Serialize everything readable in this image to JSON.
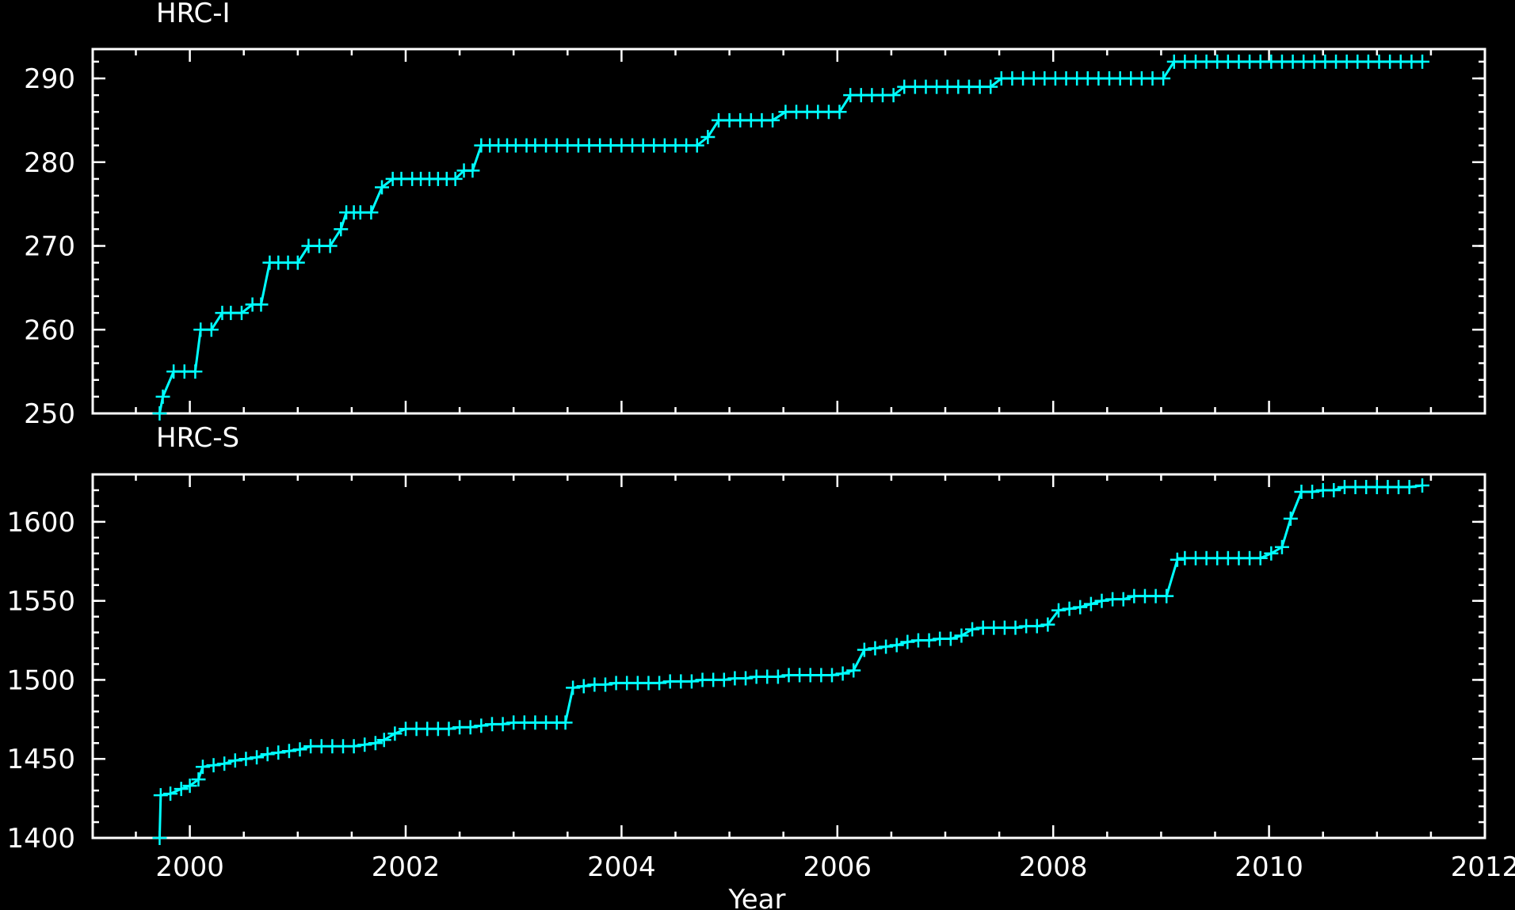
{
  "chart_data": [
    {
      "type": "line",
      "title": "HRC-I",
      "xlabel": "",
      "ylabel": "",
      "xlim": [
        1999.1,
        2012.0
      ],
      "ylim": [
        250,
        293.5
      ],
      "x_ticks": [
        2000,
        2002,
        2004,
        2006,
        2008,
        2010,
        2012
      ],
      "y_ticks": [
        250,
        260,
        270,
        280,
        290
      ],
      "y_tick_labels": [
        "250",
        "260",
        "270",
        "280",
        "290"
      ],
      "grid": false,
      "series": [
        {
          "color": "#00ffff",
          "marker": "plus",
          "x": [
            1999.72,
            1999.75,
            1999.85,
            1999.95,
            2000.05,
            2000.1,
            2000.2,
            2000.3,
            2000.38,
            2000.48,
            2000.58,
            2000.66,
            2000.74,
            2000.82,
            2000.91,
            2001.0,
            2001.1,
            2001.2,
            2001.3,
            2001.4,
            2001.45,
            2001.52,
            2001.58,
            2001.68,
            2001.78,
            2001.88,
            2001.96,
            2002.06,
            2002.14,
            2002.22,
            2002.3,
            2002.38,
            2002.46,
            2002.54,
            2002.62,
            2002.7,
            2002.78,
            2002.86,
            2002.94,
            2003.02,
            2003.12,
            2003.2,
            2003.3,
            2003.4,
            2003.5,
            2003.6,
            2003.7,
            2003.8,
            2003.9,
            2004.0,
            2004.1,
            2004.2,
            2004.3,
            2004.4,
            2004.5,
            2004.6,
            2004.7,
            2004.8,
            2004.9,
            2005.0,
            2005.1,
            2005.2,
            2005.3,
            2005.4,
            2005.52,
            2005.62,
            2005.72,
            2005.82,
            2005.92,
            2006.02,
            2006.12,
            2006.22,
            2006.32,
            2006.42,
            2006.52,
            2006.62,
            2006.72,
            2006.82,
            2006.92,
            2007.02,
            2007.12,
            2007.22,
            2007.32,
            2007.42,
            2007.52,
            2007.62,
            2007.72,
            2007.82,
            2007.92,
            2008.02,
            2008.12,
            2008.22,
            2008.32,
            2008.42,
            2008.52,
            2008.62,
            2008.72,
            2008.82,
            2008.92,
            2009.02,
            2009.12,
            2009.22,
            2009.32,
            2009.42,
            2009.52,
            2009.62,
            2009.72,
            2009.82,
            2009.92,
            2010.02,
            2010.12,
            2010.22,
            2010.32,
            2010.42,
            2010.52,
            2010.62,
            2010.72,
            2010.82,
            2010.92,
            2011.02,
            2011.12,
            2011.22,
            2011.32,
            2011.42
          ],
          "y": [
            250,
            252,
            255,
            255,
            255,
            260,
            260,
            262,
            262,
            262,
            263,
            263,
            268,
            268,
            268,
            268,
            270,
            270,
            270,
            272,
            274,
            274,
            274,
            274,
            277,
            278,
            278,
            278,
            278,
            278,
            278,
            278,
            278,
            279,
            279,
            282,
            282,
            282,
            282,
            282,
            282,
            282,
            282,
            282,
            282,
            282,
            282,
            282,
            282,
            282,
            282,
            282,
            282,
            282,
            282,
            282,
            282,
            283,
            285,
            285,
            285,
            285,
            285,
            285,
            286,
            286,
            286,
            286,
            286,
            286,
            288,
            288,
            288,
            288,
            288,
            289,
            289,
            289,
            289,
            289,
            289,
            289,
            289,
            289,
            290,
            290,
            290,
            290,
            290,
            290,
            290,
            290,
            290,
            290,
            290,
            290,
            290,
            290,
            290,
            290,
            292,
            292,
            292,
            292,
            292,
            292,
            292,
            292,
            292,
            292,
            292,
            292,
            292,
            292,
            292,
            292,
            292,
            292,
            292,
            292,
            292,
            292,
            292,
            292
          ]
        }
      ]
    },
    {
      "type": "line",
      "title": "HRC-S",
      "xlabel": "Year",
      "ylabel": "",
      "xlim": [
        1999.1,
        2012.0
      ],
      "ylim": [
        1400,
        1630
      ],
      "x_ticks": [
        2000,
        2002,
        2004,
        2006,
        2008,
        2010,
        2012
      ],
      "x_tick_labels": [
        "2000",
        "2002",
        "2004",
        "2006",
        "2008",
        "2010",
        "2012"
      ],
      "y_ticks": [
        1400,
        1450,
        1500,
        1550,
        1600
      ],
      "y_tick_labels": [
        "1400",
        "1450",
        "1500",
        "1550",
        "1600"
      ],
      "grid": false,
      "series": [
        {
          "color": "#00ffff",
          "marker": "plus",
          "x": [
            1999.72,
            1999.73,
            1999.82,
            1999.92,
            2000.0,
            2000.08,
            2000.12,
            2000.22,
            2000.32,
            2000.42,
            2000.52,
            2000.62,
            2000.72,
            2000.82,
            2000.92,
            2001.02,
            2001.12,
            2001.22,
            2001.32,
            2001.42,
            2001.52,
            2001.62,
            2001.72,
            2001.8,
            2001.9,
            2002.0,
            2002.1,
            2002.2,
            2002.3,
            2002.4,
            2002.5,
            2002.6,
            2002.7,
            2002.8,
            2002.9,
            2003.0,
            2003.1,
            2003.2,
            2003.3,
            2003.4,
            2003.48,
            2003.55,
            2003.65,
            2003.75,
            2003.85,
            2003.95,
            2004.05,
            2004.15,
            2004.25,
            2004.35,
            2004.45,
            2004.55,
            2004.65,
            2004.75,
            2004.85,
            2004.95,
            2005.05,
            2005.15,
            2005.25,
            2005.35,
            2005.45,
            2005.55,
            2005.65,
            2005.75,
            2005.85,
            2005.95,
            2006.05,
            2006.15,
            2006.25,
            2006.35,
            2006.45,
            2006.55,
            2006.65,
            2006.75,
            2006.85,
            2006.95,
            2007.05,
            2007.15,
            2007.25,
            2007.35,
            2007.45,
            2007.55,
            2007.65,
            2007.75,
            2007.85,
            2007.95,
            2008.05,
            2008.15,
            2008.25,
            2008.35,
            2008.45,
            2008.55,
            2008.65,
            2008.75,
            2008.85,
            2008.95,
            2009.05,
            2009.15,
            2009.22,
            2009.32,
            2009.42,
            2009.52,
            2009.62,
            2009.72,
            2009.82,
            2009.92,
            2010.02,
            2010.12,
            2010.2,
            2010.3,
            2010.4,
            2010.5,
            2010.6,
            2010.7,
            2010.8,
            2010.9,
            2011.0,
            2011.1,
            2011.2,
            2011.3,
            2011.42
          ],
          "y": [
            1400,
            1427,
            1428,
            1431,
            1433,
            1437,
            1445,
            1446,
            1447,
            1449,
            1450,
            1451,
            1453,
            1454,
            1455,
            1456,
            1458,
            1458,
            1458,
            1458,
            1458,
            1459,
            1460,
            1462,
            1466,
            1469,
            1469,
            1469,
            1469,
            1469,
            1470,
            1470,
            1471,
            1472,
            1472,
            1473,
            1473,
            1473,
            1473,
            1473,
            1473,
            1495,
            1496,
            1497,
            1497,
            1498,
            1498,
            1498,
            1498,
            1498,
            1499,
            1499,
            1499,
            1500,
            1500,
            1500,
            1501,
            1501,
            1502,
            1502,
            1502,
            1503,
            1503,
            1503,
            1503,
            1503,
            1504,
            1506,
            1519,
            1520,
            1521,
            1522,
            1524,
            1525,
            1525,
            1526,
            1526,
            1528,
            1532,
            1533,
            1533,
            1533,
            1533,
            1534,
            1534,
            1535,
            1544,
            1545,
            1546,
            1548,
            1550,
            1551,
            1551,
            1553,
            1553,
            1553,
            1553,
            1576,
            1577,
            1577,
            1577,
            1577,
            1577,
            1577,
            1577,
            1577,
            1580,
            1584,
            1602,
            1619,
            1619,
            1620,
            1620,
            1622,
            1622,
            1622,
            1622,
            1622,
            1622,
            1622,
            1623
          ]
        }
      ]
    }
  ]
}
